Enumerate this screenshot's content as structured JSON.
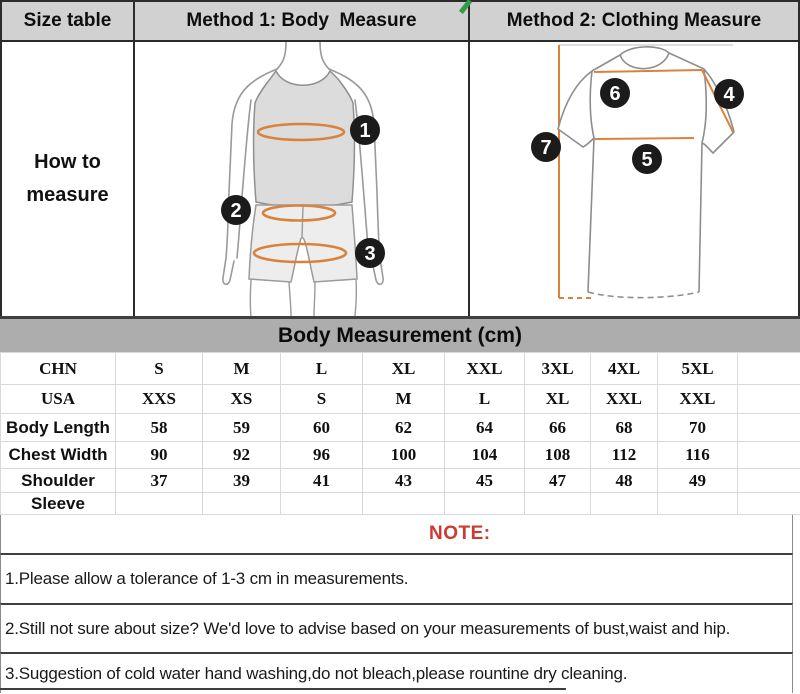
{
  "header": {
    "size_table": "Size table",
    "method1": "Method 1: Body  Measure",
    "method2": "Method 2: Clothing Measure"
  },
  "how_to_measure": "How to\nmeasure",
  "diagrams": {
    "body": {
      "markers": [
        "1",
        "2",
        "3"
      ]
    },
    "clothing": {
      "markers": [
        "6",
        "4",
        "7",
        "5"
      ]
    }
  },
  "band_title": "Body Measurement (cm)",
  "table": {
    "rows": [
      {
        "label": "CHN",
        "values": [
          "S",
          "M",
          "L",
          "XL",
          "XXL",
          "3XL",
          "4XL",
          "5XL",
          ""
        ]
      },
      {
        "label": "USA",
        "values": [
          "XXS",
          "XS",
          "S",
          "M",
          "L",
          "XL",
          "XXL",
          "XXL",
          ""
        ]
      },
      {
        "label": "Body Length",
        "values": [
          "58",
          "59",
          "60",
          "62",
          "64",
          "66",
          "68",
          "70",
          ""
        ]
      },
      {
        "label": "Chest Width",
        "values": [
          "90",
          "92",
          "96",
          "100",
          "104",
          "108",
          "112",
          "116",
          ""
        ]
      },
      {
        "label": "Shoulder",
        "values": [
          "37",
          "39",
          "41",
          "43",
          "45",
          "47",
          "48",
          "49",
          ""
        ]
      },
      {
        "label": "Sleeve",
        "values": [
          "",
          "",
          "",
          "",
          "",
          "",
          "",
          "",
          ""
        ]
      }
    ]
  },
  "note": {
    "title": "NOTE:",
    "items": [
      "1.Please allow a tolerance of 1-3 cm in measurements.",
      "2.Still not sure about size? We'd love to advise based on your measurements of bust,waist and hip.",
      "3.Suggestion of cold water hand washing,do not bleach,please rountine dry cleaning."
    ]
  },
  "colors": {
    "accent_orange": "#d9823c",
    "note_red": "#cf3a30",
    "header_gray": "#d1d1d1",
    "band_gray": "#adadad",
    "marker_black": "#1b1b1b"
  }
}
